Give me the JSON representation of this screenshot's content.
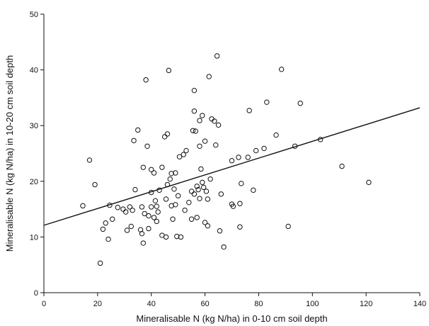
{
  "chart_data": {
    "type": "scatter",
    "title": "",
    "xlabel": "Mineralisable N (kg N/ha) in 0-10 cm soil depth",
    "ylabel": "Mineralisable N (kg N/ha) in 10-20 cm soil depth",
    "xlim": [
      0,
      140
    ],
    "ylim": [
      0,
      50
    ],
    "xticks": [
      "0",
      "20",
      "40",
      "60",
      "80",
      "100",
      "120",
      "140"
    ],
    "yticks": [
      "0",
      "10",
      "20",
      "30",
      "40",
      "50"
    ],
    "grid": false,
    "series": [
      {
        "points": [
          [
            14.5,
            15.6
          ],
          [
            17,
            23.8
          ],
          [
            19,
            19.4
          ],
          [
            21,
            5.3
          ],
          [
            22,
            11.4
          ],
          [
            23,
            12.5
          ],
          [
            24,
            9.6
          ],
          [
            24.5,
            15.7
          ],
          [
            25.5,
            13.2
          ],
          [
            27.5,
            15.3
          ],
          [
            29.5,
            15.0
          ],
          [
            30.5,
            14.5
          ],
          [
            31,
            11.2
          ],
          [
            32,
            15.4
          ],
          [
            32.5,
            11.9
          ],
          [
            33,
            14.8
          ],
          [
            33.5,
            27.3
          ],
          [
            34,
            18.5
          ],
          [
            35,
            29.2
          ],
          [
            36,
            11.3
          ],
          [
            36.5,
            15.4
          ],
          [
            36.5,
            10.6
          ],
          [
            37,
            8.9
          ],
          [
            37,
            22.5
          ],
          [
            37.5,
            14.2
          ],
          [
            38,
            38.2
          ],
          [
            38.5,
            26.3
          ],
          [
            39,
            11.5
          ],
          [
            39,
            13.8
          ],
          [
            40,
            15.4
          ],
          [
            40,
            18.0
          ],
          [
            40,
            22.1
          ],
          [
            41,
            21.5
          ],
          [
            41,
            13.5
          ],
          [
            41.5,
            16.5
          ],
          [
            42,
            12.8
          ],
          [
            42,
            15.5
          ],
          [
            42.5,
            14.5
          ],
          [
            43,
            18.4
          ],
          [
            44,
            22.5
          ],
          [
            44,
            10.3
          ],
          [
            45,
            28.0
          ],
          [
            45.5,
            10.0
          ],
          [
            45.5,
            16.8
          ],
          [
            46,
            19.4
          ],
          [
            46,
            28.5
          ],
          [
            46.5,
            39.9
          ],
          [
            47,
            20.4
          ],
          [
            47.5,
            21.4
          ],
          [
            47.5,
            15.6
          ],
          [
            48,
            13.2
          ],
          [
            48.5,
            18.6
          ],
          [
            49,
            21.5
          ],
          [
            49,
            15.8
          ],
          [
            49.5,
            10.1
          ],
          [
            50,
            17.4
          ],
          [
            50.5,
            24.4
          ],
          [
            51,
            10.0
          ],
          [
            52,
            24.8
          ],
          [
            52.5,
            14.8
          ],
          [
            53,
            25.5
          ],
          [
            54,
            16.2
          ],
          [
            55,
            18.2
          ],
          [
            55,
            13.2
          ],
          [
            55.5,
            29.1
          ],
          [
            56,
            32.6
          ],
          [
            56,
            36.3
          ],
          [
            56,
            17.7
          ],
          [
            56.5,
            29.0
          ],
          [
            57,
            19.1
          ],
          [
            57,
            13.5
          ],
          [
            57.5,
            18.5
          ],
          [
            58,
            26.3
          ],
          [
            58,
            30.9
          ],
          [
            58,
            16.9
          ],
          [
            58.5,
            22.2
          ],
          [
            59,
            19.8
          ],
          [
            59,
            31.8
          ],
          [
            59.5,
            18.9
          ],
          [
            60,
            12.6
          ],
          [
            60,
            27.2
          ],
          [
            60.5,
            18.2
          ],
          [
            61,
            16.8
          ],
          [
            61,
            12.0
          ],
          [
            61.5,
            38.8
          ],
          [
            62,
            20.4
          ],
          [
            62.5,
            31.2
          ],
          [
            63.5,
            30.8
          ],
          [
            64,
            26.5
          ],
          [
            64.5,
            42.5
          ],
          [
            65,
            30.1
          ],
          [
            65.5,
            11.1
          ],
          [
            66,
            17.7
          ],
          [
            67,
            8.2
          ],
          [
            70,
            23.7
          ],
          [
            70,
            15.9
          ],
          [
            70.5,
            15.5
          ],
          [
            72.5,
            24.3
          ],
          [
            73,
            16.0
          ],
          [
            73,
            11.8
          ],
          [
            73.5,
            19.6
          ],
          [
            76,
            24.3
          ],
          [
            76.5,
            32.7
          ],
          [
            78,
            18.4
          ],
          [
            79,
            25.5
          ],
          [
            82,
            25.9
          ],
          [
            83,
            34.2
          ],
          [
            86.5,
            28.3
          ],
          [
            88.5,
            40.1
          ],
          [
            91,
            11.9
          ],
          [
            93.5,
            26.3
          ],
          [
            95.5,
            34.0
          ],
          [
            103,
            27.5
          ],
          [
            111,
            22.7
          ],
          [
            121,
            19.8
          ]
        ]
      }
    ],
    "trendline": {
      "x": [
        0,
        140
      ],
      "y": [
        12.1,
        33.2
      ]
    }
  }
}
